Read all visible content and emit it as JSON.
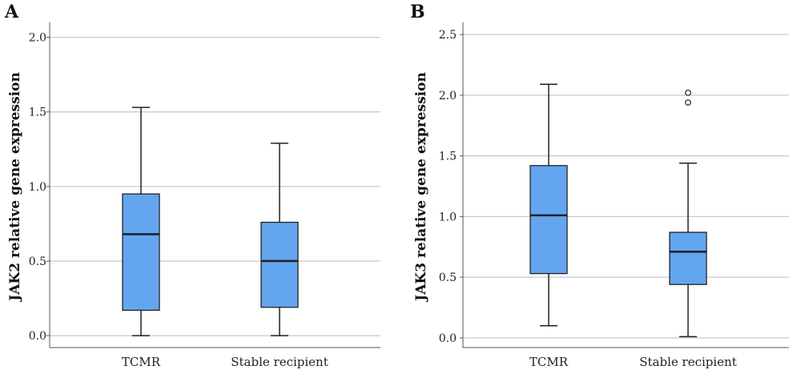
{
  "colors": {
    "box_fill": "#64A5F0",
    "stroke": "#222222",
    "grid": "#C8C8C8"
  },
  "chart_data": [
    {
      "panel": "A",
      "type": "box",
      "ylabel": "JAK2 relative gene expression",
      "categories": [
        "TCMR",
        "Stable recipient"
      ],
      "ylim": [
        -0.08,
        2.1
      ],
      "yticks": [
        0.0,
        0.5,
        1.0,
        1.5,
        2.0
      ],
      "ytick_labels": [
        "0.0",
        "0.5",
        "1.0",
        "1.5",
        "2.0"
      ],
      "grid": true,
      "boxes": [
        {
          "category": "TCMR",
          "whisker_low": 0.0,
          "q1": 0.17,
          "median": 0.68,
          "q3": 0.95,
          "whisker_high": 1.53,
          "outliers": []
        },
        {
          "category": "Stable recipient",
          "whisker_low": 0.0,
          "q1": 0.19,
          "median": 0.5,
          "q3": 0.76,
          "whisker_high": 1.29,
          "outliers": []
        }
      ]
    },
    {
      "panel": "B",
      "type": "box",
      "ylabel": "JAK3 relative gene expression",
      "categories": [
        "TCMR",
        "Stable recipient"
      ],
      "ylim": [
        -0.08,
        2.6
      ],
      "yticks": [
        0.0,
        0.5,
        1.0,
        1.5,
        2.0,
        2.5
      ],
      "ytick_labels": [
        "0.0",
        "0.5",
        "1.0",
        "1.5",
        "2.0",
        "2.5"
      ],
      "grid": true,
      "boxes": [
        {
          "category": "TCMR",
          "whisker_low": 0.1,
          "q1": 0.53,
          "median": 1.01,
          "q3": 1.42,
          "whisker_high": 2.09,
          "outliers": []
        },
        {
          "category": "Stable recipient",
          "whisker_low": 0.01,
          "q1": 0.44,
          "median": 0.71,
          "q3": 0.87,
          "whisker_high": 1.44,
          "outliers": [
            1.94,
            2.02
          ]
        }
      ]
    }
  ]
}
